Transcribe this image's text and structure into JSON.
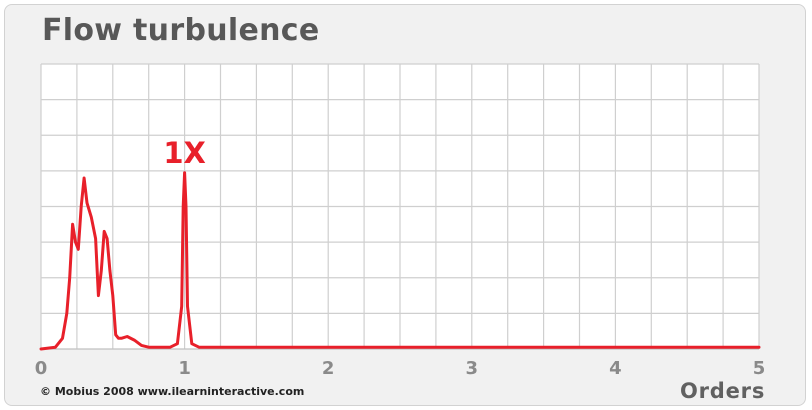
{
  "chart_data": {
    "type": "line",
    "title": "Flow turbulence",
    "xlabel": "Orders",
    "ylabel": "",
    "xlim": [
      0,
      5
    ],
    "ylim": [
      0,
      8
    ],
    "grid": true,
    "x_ticks": [
      "0",
      "1",
      "2",
      "3",
      "4",
      "5"
    ],
    "annotations": [
      {
        "text": "1X",
        "x": 1.0,
        "y": 5.5
      }
    ],
    "series": [
      {
        "color": "#e8202a",
        "x": [
          0,
          0.1,
          0.15,
          0.18,
          0.2,
          0.22,
          0.24,
          0.26,
          0.28,
          0.3,
          0.32,
          0.35,
          0.38,
          0.4,
          0.42,
          0.44,
          0.46,
          0.48,
          0.5,
          0.52,
          0.54,
          0.56,
          0.6,
          0.65,
          0.7,
          0.75,
          0.9,
          0.95,
          0.98,
          0.99,
          1.0,
          1.01,
          1.02,
          1.05,
          1.1,
          5.0
        ],
        "y": [
          0,
          0.05,
          0.3,
          1.0,
          2.0,
          3.5,
          3.0,
          2.8,
          4.0,
          4.8,
          4.1,
          3.7,
          3.1,
          1.5,
          2.2,
          3.3,
          3.1,
          2.2,
          1.5,
          0.4,
          0.3,
          0.3,
          0.35,
          0.25,
          0.1,
          0.05,
          0.05,
          0.15,
          1.2,
          4.0,
          4.95,
          4.0,
          1.2,
          0.15,
          0.05,
          0.05
        ]
      }
    ]
  },
  "footer": {
    "copyright": "© Mobius 2008 www.ilearninteractive.com"
  }
}
